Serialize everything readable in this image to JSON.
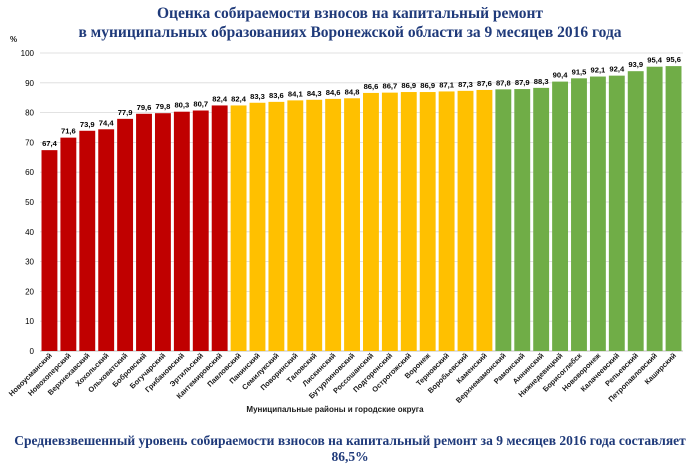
{
  "header": {
    "title_line1": "Оценка собираемости взносов на капитальный ремонт",
    "title_line2": "в муниципальных образованиях Воронежской области за 9 месяцев 2016 года"
  },
  "footer": {
    "text": "Средневзвешенный уровень собираемости взносов на капитальный ремонт за 9 месяцев 2016 года составляет 86,5%"
  },
  "colors": {
    "red": "#c00000",
    "yellow": "#ffc000",
    "green": "#70ad47",
    "grid": "#d9d9d9"
  },
  "chart_data": {
    "type": "bar",
    "title": "",
    "ylabel": "%",
    "xlabel": "Муниципальные районы и городские округа",
    "ylim": [
      0,
      100
    ],
    "yticks": [
      0,
      10,
      20,
      30,
      40,
      50,
      60,
      70,
      80,
      90,
      100
    ],
    "grid": true,
    "categories": [
      "Новоусманский",
      "Новохоперский",
      "Верхнехавский",
      "Хохольский",
      "Ольховатский",
      "Бобровский",
      "Богучарский",
      "Грибановский",
      "Эртильский",
      "Кантемировский",
      "Павловский",
      "Панинский",
      "Семилукский",
      "Поворинский",
      "Таловский",
      "Лискинский",
      "Бутурлиновский",
      "Россошанский",
      "Подгоренский",
      "Острогожский",
      "Воронеж",
      "Терновский",
      "Воробьевский",
      "Каменский",
      "Верхнемамонский",
      "Рамонский",
      "Аннинский",
      "Нижнедевицкий",
      "Борисоглебск",
      "Нововоронеж",
      "Калачеевский",
      "Репьевский",
      "Петропавловский",
      "Каширский"
    ],
    "values": [
      67.4,
      71.6,
      73.9,
      74.4,
      77.9,
      79.6,
      79.8,
      80.3,
      80.7,
      82.4,
      82.4,
      83.3,
      83.6,
      84.1,
      84.3,
      84.6,
      84.8,
      86.6,
      86.7,
      86.9,
      86.9,
      87.1,
      87.3,
      87.6,
      87.8,
      87.9,
      88.3,
      90.4,
      91.5,
      92.1,
      92.4,
      93.9,
      95.4,
      95.6
    ],
    "value_labels": [
      "67,4",
      "71,6",
      "73,9",
      "74,4",
      "77,9",
      "79,6",
      "79,8",
      "80,3",
      "80,7",
      "82,4",
      "82,4",
      "83,3",
      "83,6",
      "84,1",
      "84,3",
      "84,6",
      "84,8",
      "86,6",
      "86,7",
      "86,9",
      "86,9",
      "87,1",
      "87,3",
      "87,6",
      "87,8",
      "87,9",
      "88,3",
      "90,4",
      "91,5",
      "92,1",
      "92,4",
      "93,9",
      "95,4",
      "95,6"
    ],
    "color_groups": [
      "red",
      "red",
      "red",
      "red",
      "red",
      "red",
      "red",
      "red",
      "red",
      "red",
      "yellow",
      "yellow",
      "yellow",
      "yellow",
      "yellow",
      "yellow",
      "yellow",
      "yellow",
      "yellow",
      "yellow",
      "yellow",
      "yellow",
      "yellow",
      "yellow",
      "green",
      "green",
      "green",
      "green",
      "green",
      "green",
      "green",
      "green",
      "green",
      "green"
    ]
  }
}
